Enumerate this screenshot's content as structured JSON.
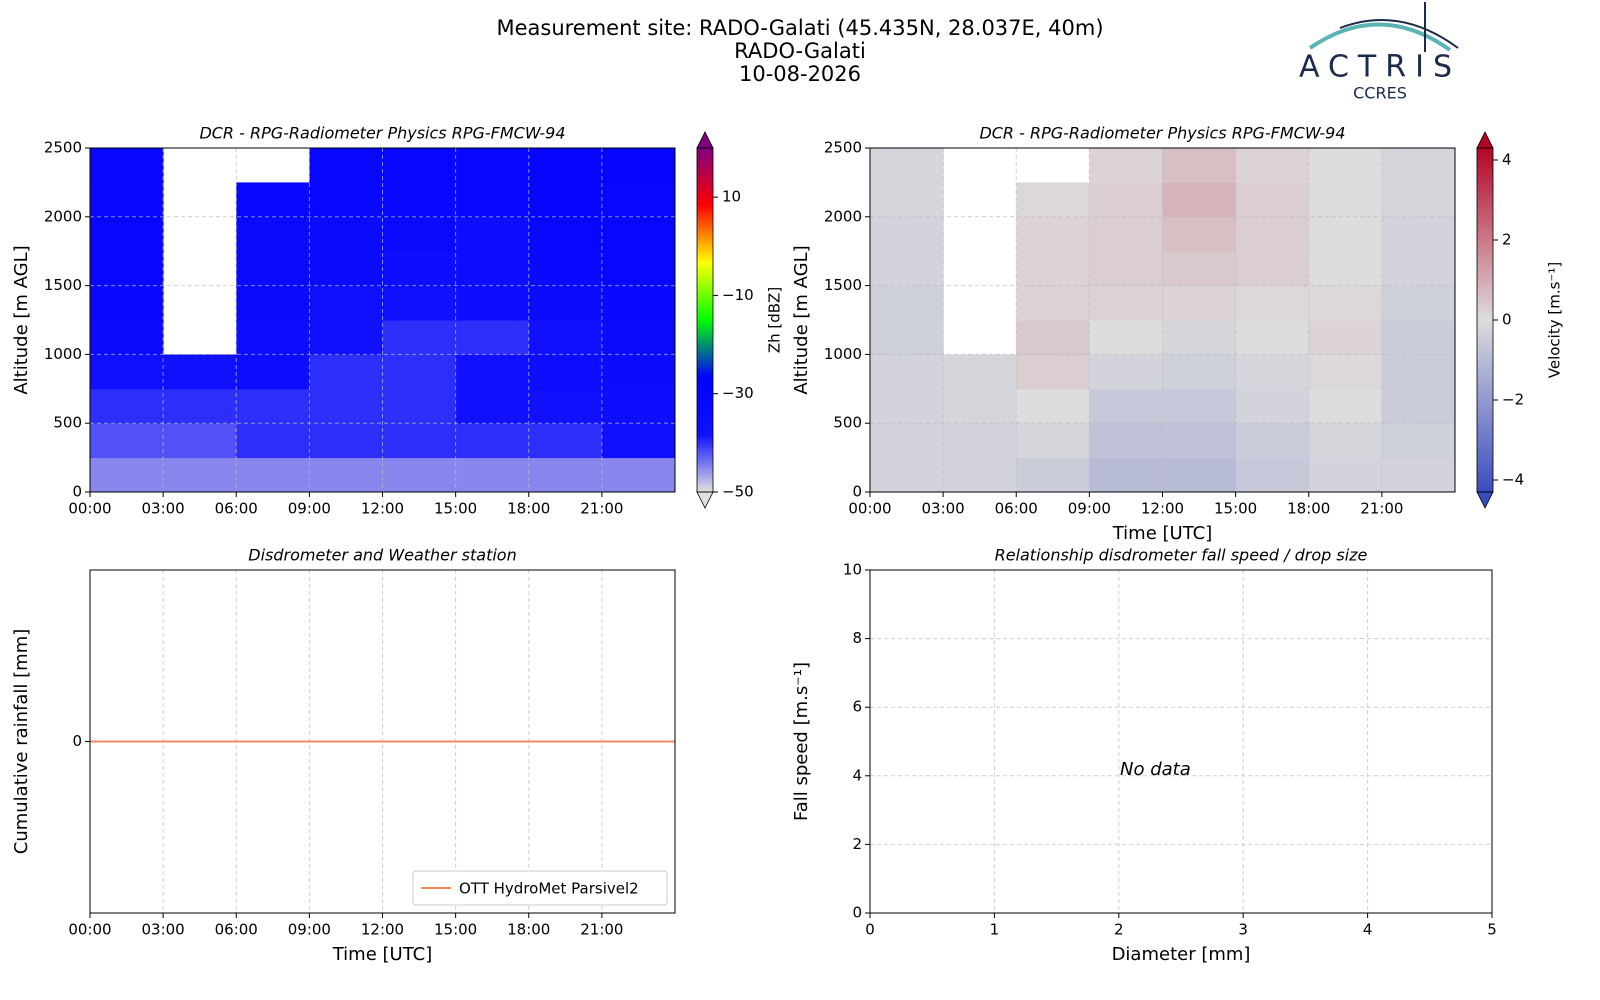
{
  "header": {
    "title": "Measurement site: RADO-Galati (45.435N, 28.037E, 40m)",
    "site": "RADO-Galati",
    "date": "10-08-2026",
    "logo": "ACTRIS",
    "logo_sub": "CCRES"
  },
  "chart_data": [
    {
      "type": "heatmap",
      "title": "DCR - RPG-Radiometer Physics RPG-FMCW-94",
      "ylabel": "Altitude [m AGL]",
      "xlim": [
        0,
        24
      ],
      "xticks": [
        {
          "value": 0,
          "label": "00:00"
        },
        {
          "value": 3,
          "label": "03:00"
        },
        {
          "value": 6,
          "label": "06:00"
        },
        {
          "value": 9,
          "label": "09:00"
        },
        {
          "value": 12,
          "label": "12:00"
        },
        {
          "value": 15,
          "label": "15:00"
        },
        {
          "value": 18,
          "label": "18:00"
        },
        {
          "value": 21,
          "label": "21:00"
        }
      ],
      "ylim": [
        0,
        2500
      ],
      "yticks": [
        0,
        500,
        1000,
        1500,
        2000,
        2500
      ],
      "grid": true,
      "x_bins": [
        0,
        3,
        6,
        9,
        12,
        15,
        18,
        21,
        24
      ],
      "y_bins": [
        0,
        250,
        500,
        750,
        1000,
        1250,
        1500,
        1750,
        2000,
        2250,
        2500
      ],
      "z": [
        [
          -45,
          -45,
          -45,
          -45,
          -45,
          -45,
          -45,
          -45
        ],
        [
          -42,
          -42,
          -40,
          -40,
          -40,
          -40,
          -40,
          -38
        ],
        [
          -40,
          -40,
          -40,
          -40,
          -40,
          -38,
          -38,
          -36
        ],
        [
          -38,
          -38,
          -36,
          -40,
          -40,
          -38,
          -36,
          -35
        ],
        [
          -34,
          null,
          -36,
          -38,
          -40,
          -40,
          -38,
          -34
        ],
        [
          -33,
          null,
          -34,
          -38,
          -38,
          -36,
          -34,
          -33
        ],
        [
          -32,
          null,
          -34,
          -34,
          -36,
          -36,
          -33,
          -32
        ],
        [
          -32,
          null,
          -34,
          -34,
          -34,
          -36,
          -32,
          -32
        ],
        [
          -33,
          null,
          -32,
          -32,
          -33,
          -32,
          -31,
          -32
        ],
        [
          -32,
          null,
          null,
          -32,
          -32,
          -32,
          -31,
          -31
        ]
      ],
      "colorbar_label": "Zh [dBZ]",
      "zlim": [
        -50,
        20
      ],
      "zticks": [
        {
          "value": -50,
          "label": "−50"
        },
        {
          "value": -30,
          "label": "−30"
        },
        {
          "value": -10,
          "label": "−10"
        },
        10
      ],
      "extend": "both",
      "colormap": [
        "#e0e0e0",
        "#1010ff",
        "#0000ff",
        "#00ff00",
        "#ffff00",
        "#ff0000",
        "#800080"
      ]
    },
    {
      "type": "heatmap",
      "title": "DCR - RPG-Radiometer Physics RPG-FMCW-94",
      "ylabel": "Altitude [m AGL]",
      "xlabel": "Time [UTC]",
      "xlim": [
        0,
        24
      ],
      "xticks": [
        {
          "value": 0,
          "label": "00:00"
        },
        {
          "value": 3,
          "label": "03:00"
        },
        {
          "value": 6,
          "label": "06:00"
        },
        {
          "value": 9,
          "label": "09:00"
        },
        {
          "value": 12,
          "label": "12:00"
        },
        {
          "value": 15,
          "label": "15:00"
        },
        {
          "value": 18,
          "label": "18:00"
        },
        {
          "value": 21,
          "label": "21:00"
        }
      ],
      "ylim": [
        0,
        2500
      ],
      "yticks": [
        0,
        500,
        1000,
        1500,
        2000,
        2500
      ],
      "grid": true,
      "x_bins": [
        0,
        3,
        6,
        9,
        12,
        15,
        18,
        21,
        24
      ],
      "y_bins": [
        0,
        250,
        500,
        750,
        1000,
        1250,
        1500,
        1750,
        2000,
        2250,
        2500
      ],
      "z": [
        [
          -0.3,
          -0.3,
          -0.5,
          -1,
          -1,
          -0.6,
          -0.3,
          -0.3
        ],
        [
          -0.3,
          -0.3,
          -0.2,
          -0.8,
          -0.8,
          -0.5,
          -0.2,
          -0.4
        ],
        [
          -0.3,
          -0.2,
          0,
          -0.6,
          -0.6,
          -0.3,
          0,
          -0.5
        ],
        [
          -0.3,
          -0.2,
          0.3,
          -0.3,
          -0.4,
          -0.2,
          0.1,
          -0.5
        ],
        [
          -0.4,
          null,
          0.4,
          0,
          -0.2,
          0,
          0.2,
          -0.5
        ],
        [
          -0.4,
          null,
          0.2,
          0.2,
          0.2,
          0.1,
          0.1,
          -0.4
        ],
        [
          -0.3,
          null,
          0.2,
          0.3,
          0.4,
          0.3,
          0,
          -0.3
        ],
        [
          -0.3,
          null,
          0.2,
          0.3,
          0.6,
          0.3,
          0,
          -0.3
        ],
        [
          -0.2,
          null,
          0.1,
          0.3,
          0.8,
          0.3,
          0,
          -0.2
        ],
        [
          -0.2,
          null,
          null,
          0.2,
          0.6,
          0.2,
          0,
          -0.2
        ]
      ],
      "colorbar_label": "Velocity [m.s⁻¹]",
      "zlim": [
        -4.3,
        4.3
      ],
      "zticks": [
        {
          "value": -4,
          "label": "−4"
        },
        {
          "value": -2,
          "label": "−2"
        },
        0,
        2,
        4
      ],
      "extend": "both",
      "colormap": [
        "#3b4cc0",
        "#dddddd",
        "#b40426"
      ]
    },
    {
      "type": "line",
      "title": "Disdrometer and Weather station",
      "ylabel": "Cumulative rainfall [mm]",
      "xlabel": "Time [UTC]",
      "xlim": [
        0,
        24
      ],
      "xticks": [
        {
          "value": 0,
          "label": "00:00"
        },
        {
          "value": 3,
          "label": "03:00"
        },
        {
          "value": 6,
          "label": "06:00"
        },
        {
          "value": 9,
          "label": "09:00"
        },
        {
          "value": 12,
          "label": "12:00"
        },
        {
          "value": 15,
          "label": "15:00"
        },
        {
          "value": 18,
          "label": "18:00"
        },
        {
          "value": 21,
          "label": "21:00"
        }
      ],
      "ylim": [
        -0.055,
        0.055
      ],
      "yticks": [
        0
      ],
      "grid": true,
      "legend": "lower right",
      "x": [
        0,
        24
      ],
      "series": [
        {
          "name": "OTT HydroMet Parsivel2",
          "color": "#f08a5d",
          "values": [
            0,
            0
          ]
        }
      ]
    },
    {
      "type": "scatter",
      "title": "Relationship disdrometer fall speed / drop size",
      "xlabel": "Diameter [mm]",
      "ylabel": "Fall speed [m.s⁻¹]",
      "xlim": [
        0,
        5
      ],
      "xticks": [
        0,
        1,
        2,
        3,
        4,
        5
      ],
      "ylim": [
        0,
        10
      ],
      "yticks": [
        0,
        2,
        4,
        6,
        8,
        10
      ],
      "grid": true,
      "annotation": "No data"
    }
  ]
}
